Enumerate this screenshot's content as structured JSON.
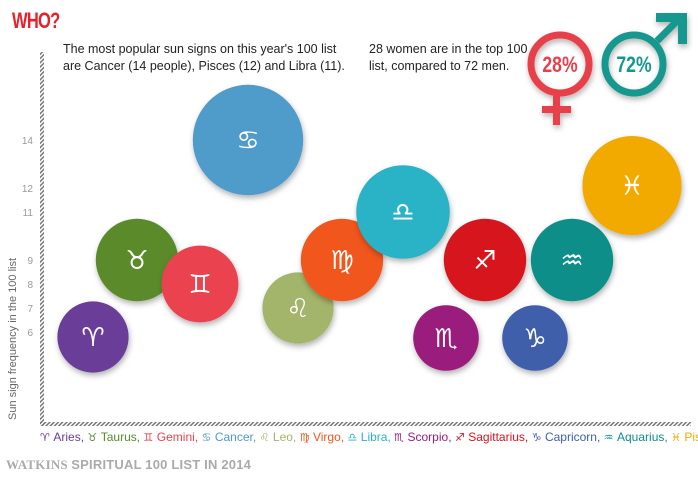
{
  "header": {
    "title": "WHO?"
  },
  "notes": {
    "signs": [
      "The most popular sun signs on this year's 100 list",
      "are Cancer (14 people), Pisces (12) and Libra (11)."
    ],
    "gender": [
      "28 women are in the top 100",
      "list, compared to 72 men."
    ]
  },
  "gender": {
    "women_label": "28%",
    "women_percent": 28,
    "women_color": "#e8404a",
    "men_label": "72%",
    "men_percent": 72,
    "men_color": "#14988e"
  },
  "chart_data": {
    "type": "scatter",
    "title": "Sun sign frequency",
    "ylabel": "Sun sign frequency in the 100 list",
    "yticks": [
      14,
      12,
      11,
      9,
      8,
      7,
      6
    ],
    "ylim": [
      4.4,
      15.6
    ],
    "grid": false,
    "categories": [
      "Aries",
      "Taurus",
      "Gemini",
      "Cancer",
      "Leo",
      "Virgo",
      "Libra",
      "Scorpio",
      "Sagittarius",
      "Capricorn",
      "Aquarius",
      "Pisces"
    ],
    "symbols": [
      "♈",
      "♉",
      "♊",
      "♋",
      "♌",
      "♍",
      "♎",
      "♏",
      "♐",
      "♑",
      "♒",
      "♓"
    ],
    "values": [
      7,
      9,
      8,
      14,
      7,
      9,
      11,
      6,
      9,
      6,
      9,
      12
    ],
    "colors": [
      "#6b3c98",
      "#5a8a2b",
      "#ea4350",
      "#4f9ccb",
      "#a3b56b",
      "#f1561d",
      "#2ab3c6",
      "#9a1b7c",
      "#d6121f",
      "#3f5eab",
      "#0f8e89",
      "#f2aa00"
    ]
  },
  "legend": [
    "Aries",
    "Taurus",
    "Gemini",
    "Cancer",
    "Leo",
    "Virgo",
    "Libra",
    "Scorpio",
    "Sagittarius",
    "Capricorn",
    "Aquarius",
    "Pisces"
  ],
  "footer": {
    "brand": "WATKINS",
    "text": "SPIRITUAL 100 LIST IN 2014"
  }
}
